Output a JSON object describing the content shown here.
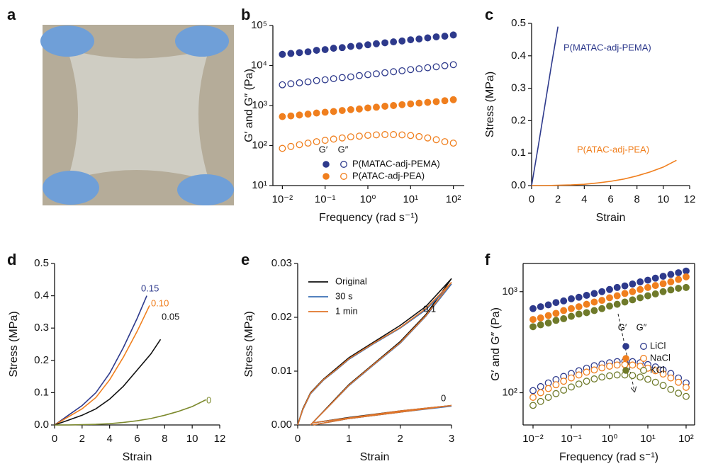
{
  "chart_data": [
    {
      "type": "image",
      "panel": "a"
    },
    {
      "type": "scatter",
      "panel": "b",
      "xlabel": "Frequency (rad s⁻¹)",
      "ylabel": "G′ and G″ (Pa)",
      "xlog": true,
      "ylog": true,
      "xlim": [
        0.006,
        180
      ],
      "ylim": [
        10,
        100000
      ],
      "xticks": [
        {
          "value": 0.01,
          "label": "10⁻²"
        },
        {
          "value": 0.1,
          "label": "10⁻¹"
        },
        {
          "value": 1,
          "label": "10⁰"
        },
        {
          "value": 10,
          "label": "10¹"
        },
        {
          "value": 100,
          "label": "10²"
        }
      ],
      "yticks": [
        {
          "value": 10,
          "label": "10¹"
        },
        {
          "value": 100,
          "label": "10²"
        },
        {
          "value": 1000,
          "label": "10³"
        },
        {
          "value": 10000,
          "label": "10⁴"
        },
        {
          "value": 100000,
          "label": "10⁵"
        }
      ],
      "legend": "lower left",
      "legend_header": [
        "G′",
        "G″"
      ],
      "x": [
        0.01,
        0.0158,
        0.0251,
        0.0398,
        0.0631,
        0.1,
        0.158,
        0.251,
        0.398,
        0.631,
        1,
        1.58,
        2.51,
        3.98,
        6.31,
        10,
        15.8,
        25.1,
        39.8,
        63.1,
        100
      ],
      "series": [
        {
          "name": "P(MATAC-adj-PEMA)",
          "color": "#2e3a8c",
          "values": [
            19000,
            20000,
            21000,
            22000,
            24000,
            25000,
            27000,
            28000,
            30000,
            31000,
            33000,
            35000,
            37000,
            39000,
            41000,
            44000,
            46000,
            49000,
            52000,
            54000,
            58000
          ],
          "loss_values": [
            3300,
            3500,
            3700,
            3900,
            4200,
            4400,
            4700,
            5000,
            5200,
            5600,
            5900,
            6200,
            6600,
            7000,
            7400,
            7900,
            8300,
            8800,
            9300,
            9900,
            10500
          ]
        },
        {
          "name": "P(ATAC-adj-PEA)",
          "color": "#f07f1e",
          "values": [
            530,
            550,
            580,
            610,
            650,
            680,
            710,
            750,
            790,
            820,
            870,
            910,
            960,
            1000,
            1050,
            1100,
            1150,
            1200,
            1250,
            1320,
            1400
          ],
          "loss_values": [
            85,
            95,
            105,
            115,
            125,
            135,
            145,
            155,
            165,
            172,
            180,
            185,
            188,
            188,
            185,
            178,
            168,
            155,
            140,
            125,
            115
          ]
        }
      ]
    },
    {
      "type": "line",
      "panel": "c",
      "xlabel": "Strain",
      "ylabel": "Stress (MPa)",
      "xlim": [
        0,
        12
      ],
      "ylim": [
        0,
        0.5
      ],
      "xticks": [
        0,
        2,
        4,
        6,
        8,
        10,
        12
      ],
      "yticks": [
        {
          "value": 0,
          "label": "0.0"
        },
        0.1,
        0.2,
        0.3,
        0.4,
        0.5
      ],
      "series": [
        {
          "name": "P(MATAC-adj-PEMA)",
          "color": "#2e3a8c",
          "x": [
            0,
            0.5,
            1,
            1.5,
            2
          ],
          "values": [
            0,
            0.12,
            0.245,
            0.37,
            0.49
          ]
        },
        {
          "name": "P(ATAC-adj-PEA)",
          "color": "#f07f1e",
          "x": [
            0,
            1,
            2,
            3,
            4,
            5,
            6,
            7,
            8,
            9,
            10,
            11
          ],
          "values": [
            0,
            0,
            0.001,
            0.002,
            0.004,
            0.008,
            0.013,
            0.02,
            0.03,
            0.042,
            0.057,
            0.078
          ]
        }
      ]
    },
    {
      "type": "line",
      "panel": "d",
      "xlabel": "Strain",
      "ylabel": "Stress (MPa)",
      "xlim": [
        0,
        12
      ],
      "ylim": [
        0,
        0.5
      ],
      "xticks": [
        0,
        2,
        4,
        6,
        8,
        10,
        12
      ],
      "yticks": [
        {
          "value": 0,
          "label": "0.0"
        },
        0.1,
        0.2,
        0.3,
        0.4,
        0.5
      ],
      "series": [
        {
          "name": "0.15",
          "color": "#2e3a8c",
          "x": [
            0,
            1,
            2,
            3,
            4,
            5,
            6,
            6.7
          ],
          "values": [
            0,
            0.03,
            0.06,
            0.1,
            0.16,
            0.24,
            0.33,
            0.4
          ]
        },
        {
          "name": "0.10",
          "color": "#f07f1e",
          "x": [
            0,
            1,
            2,
            3,
            4,
            5,
            6,
            6.9
          ],
          "values": [
            0,
            0.025,
            0.05,
            0.085,
            0.14,
            0.21,
            0.29,
            0.37
          ]
        },
        {
          "name": "0.05",
          "color": "#111111",
          "x": [
            0,
            1,
            2,
            3,
            4,
            5,
            6,
            7,
            7.7
          ],
          "values": [
            0,
            0.015,
            0.03,
            0.05,
            0.08,
            0.12,
            0.17,
            0.22,
            0.265
          ]
        },
        {
          "name": "0",
          "color": "#7d8a2e",
          "x": [
            0,
            1,
            2,
            3,
            4,
            5,
            6,
            7,
            8,
            9,
            10,
            11
          ],
          "values": [
            0,
            0,
            0.001,
            0.002,
            0.004,
            0.008,
            0.013,
            0.02,
            0.03,
            0.042,
            0.057,
            0.078
          ]
        }
      ]
    },
    {
      "type": "line",
      "panel": "e",
      "xlabel": "Strain",
      "ylabel": "Stress (MPa)",
      "xlim": [
        0,
        3
      ],
      "ylim": [
        0,
        0.03
      ],
      "xticks": [
        0,
        1,
        2,
        3
      ],
      "yticks": [
        {
          "value": 0,
          "label": "0.00"
        },
        0.01,
        0.02,
        0.03
      ],
      "legend": "upper left",
      "annotations": [
        "0.1",
        "0"
      ],
      "x": [
        0,
        0.1,
        0.25,
        0.5,
        0.75,
        1,
        1.5,
        2,
        2.5,
        3,
        2.5,
        2,
        1.5,
        1,
        0.6,
        0.35,
        0.25,
        null,
        0.3,
        1,
        2,
        3,
        2,
        1,
        0.3
      ],
      "series": [
        {
          "name": "Original",
          "color": "#111111",
          "values": [
            0,
            0.003,
            0.006,
            0.0085,
            0.0105,
            0.0125,
            0.0155,
            0.0185,
            0.022,
            0.0272,
            0.0205,
            0.0155,
            0.0115,
            0.0075,
            0.0035,
            0.001,
            0,
            null,
            0,
            0.0012,
            0.0024,
            0.0036,
            0.0026,
            0.0014,
            0.0004
          ]
        },
        {
          "name": "30 s",
          "color": "#3a6fb5",
          "values": [
            0,
            0.0028,
            0.0058,
            0.0083,
            0.0102,
            0.0122,
            0.0152,
            0.018,
            0.0214,
            0.0262,
            0.0202,
            0.0152,
            0.0113,
            0.0073,
            0.0034,
            0.001,
            0,
            null,
            0,
            0.0012,
            0.0024,
            0.0035,
            0.0025,
            0.0013,
            0.0004
          ]
        },
        {
          "name": "1 min",
          "color": "#e0752a",
          "values": [
            0,
            0.0029,
            0.0059,
            0.0084,
            0.0103,
            0.0123,
            0.0153,
            0.0181,
            0.0216,
            0.0265,
            0.0203,
            0.0153,
            0.0114,
            0.0074,
            0.0034,
            0.001,
            0,
            null,
            0,
            0.0012,
            0.0024,
            0.0036,
            0.0026,
            0.0013,
            0.0004
          ]
        }
      ]
    },
    {
      "type": "scatter",
      "panel": "f",
      "xlabel": "Frequency (rad s⁻¹)",
      "ylabel": "G′ and G″ (Pa)",
      "xlog": true,
      "ylog": true,
      "frame": true,
      "xlim": [
        0.0055,
        167
      ],
      "ylim": [
        48,
        1900
      ],
      "xticks": [
        {
          "value": 0.01,
          "label": "10⁻²"
        },
        {
          "value": 0.1,
          "label": "10⁻¹"
        },
        {
          "value": 1,
          "label": "10⁰"
        },
        {
          "value": 10,
          "label": "10¹"
        },
        {
          "value": 100,
          "label": "10²"
        }
      ],
      "yticks": [
        {
          "value": 100,
          "label": "10²"
        },
        {
          "value": 1000,
          "label": "10³"
        }
      ],
      "legend": "center right",
      "legend_header": [
        "G′",
        "G″"
      ],
      "x": [
        0.01,
        0.0158,
        0.0251,
        0.0398,
        0.0631,
        0.1,
        0.158,
        0.251,
        0.398,
        0.631,
        1,
        1.58,
        2.51,
        3.98,
        6.31,
        10,
        15.8,
        25.1,
        39.8,
        63.1,
        100
      ],
      "series": [
        {
          "name": "LiCl",
          "color": "#2e3a8c",
          "values": [
            680,
            710,
            740,
            780,
            810,
            850,
            880,
            920,
            960,
            1000,
            1050,
            1100,
            1140,
            1190,
            1250,
            1300,
            1360,
            1420,
            1480,
            1540,
            1600
          ],
          "loss_values": [
            105,
            115,
            125,
            135,
            145,
            155,
            165,
            175,
            185,
            192,
            198,
            203,
            205,
            203,
            198,
            190,
            180,
            168,
            155,
            140,
            125
          ]
        },
        {
          "name": "NaCl",
          "color": "#f07f1e",
          "values": [
            530,
            550,
            580,
            610,
            650,
            680,
            710,
            750,
            790,
            820,
            870,
            910,
            960,
            1000,
            1050,
            1100,
            1150,
            1200,
            1250,
            1320,
            1400
          ],
          "loss_values": [
            90,
            100,
            110,
            120,
            130,
            140,
            150,
            160,
            168,
            176,
            183,
            188,
            190,
            188,
            183,
            175,
            165,
            153,
            140,
            127,
            113
          ]
        },
        {
          "name": "KCl",
          "color": "#6f7a2a",
          "values": [
            450,
            470,
            490,
            520,
            540,
            570,
            600,
            620,
            650,
            680,
            720,
            750,
            790,
            830,
            870,
            910,
            950,
            1000,
            1040,
            1080,
            1100
          ],
          "loss_values": [
            75,
            82,
            90,
            98,
            106,
            114,
            122,
            130,
            137,
            143,
            147,
            150,
            150,
            148,
            143,
            136,
            127,
            118,
            108,
            99,
            92
          ]
        }
      ]
    }
  ]
}
